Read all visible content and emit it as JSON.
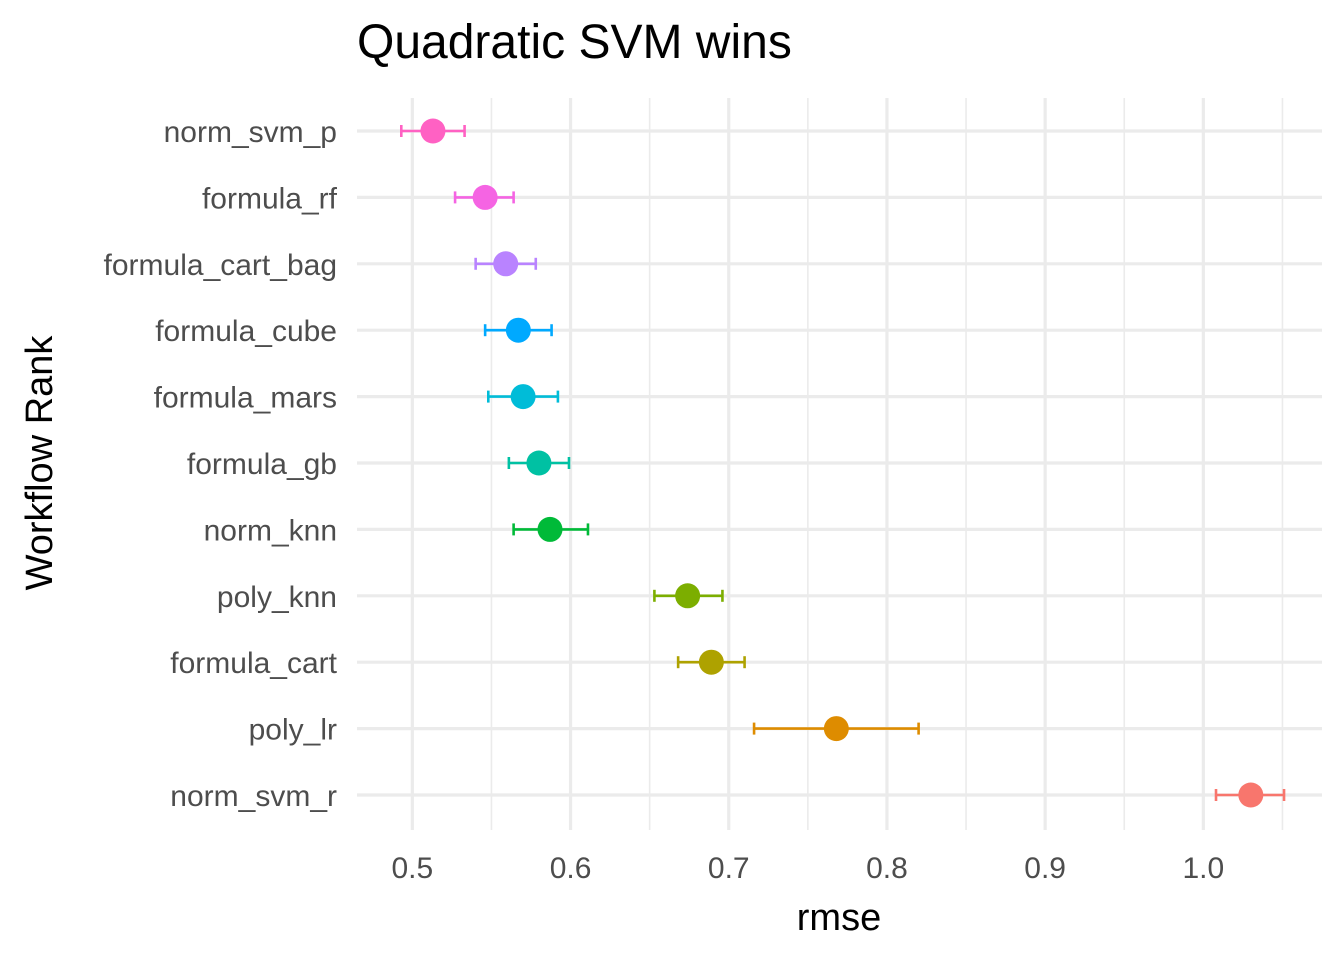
{
  "chart_data": {
    "type": "scatter",
    "title": "Quadratic SVM wins",
    "xlabel": "rmse",
    "ylabel": "Workflow Rank",
    "xlim": [
      0.465,
      1.075
    ],
    "x_ticks": [
      "0.5",
      "0.6",
      "0.7",
      "0.8",
      "0.9",
      "1.0"
    ],
    "x_tick_values": [
      0.5,
      0.6,
      0.7,
      0.8,
      0.9,
      1.0
    ],
    "x_minor_ticks": [
      0.55,
      0.65,
      0.75,
      0.85,
      0.95,
      1.05
    ],
    "grid": true,
    "legend": "none",
    "error_bars": true,
    "points": [
      {
        "label": "norm_svm_p",
        "value": 0.513,
        "lower": 0.493,
        "upper": 0.533,
        "color": "#FF61C3"
      },
      {
        "label": "formula_rf",
        "value": 0.546,
        "lower": 0.527,
        "upper": 0.564,
        "color": "#F564E3"
      },
      {
        "label": "formula_cart_bag",
        "value": 0.559,
        "lower": 0.54,
        "upper": 0.578,
        "color": "#B983FF"
      },
      {
        "label": "formula_cube",
        "value": 0.567,
        "lower": 0.546,
        "upper": 0.588,
        "color": "#00A9FF"
      },
      {
        "label": "formula_mars",
        "value": 0.57,
        "lower": 0.548,
        "upper": 0.592,
        "color": "#00BCD8"
      },
      {
        "label": "formula_gb",
        "value": 0.58,
        "lower": 0.561,
        "upper": 0.599,
        "color": "#00C1A3"
      },
      {
        "label": "norm_knn",
        "value": 0.587,
        "lower": 0.564,
        "upper": 0.611,
        "color": "#00BA38"
      },
      {
        "label": "poly_knn",
        "value": 0.674,
        "lower": 0.653,
        "upper": 0.696,
        "color": "#7CAE00"
      },
      {
        "label": "formula_cart",
        "value": 0.689,
        "lower": 0.668,
        "upper": 0.71,
        "color": "#AEA200"
      },
      {
        "label": "poly_lr",
        "value": 0.768,
        "lower": 0.716,
        "upper": 0.82,
        "color": "#DE8C00"
      },
      {
        "label": "norm_svm_r",
        "value": 1.03,
        "lower": 1.008,
        "upper": 1.051,
        "color": "#F8766D"
      }
    ]
  }
}
